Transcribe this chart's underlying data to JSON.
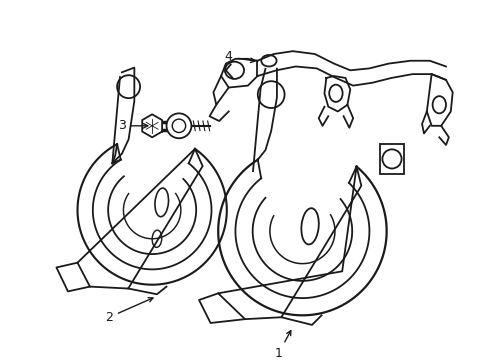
{
  "background_color": "#ffffff",
  "line_color": "#1a1a1a",
  "line_width": 1.3,
  "figsize": [
    4.9,
    3.6
  ],
  "dpi": 100
}
